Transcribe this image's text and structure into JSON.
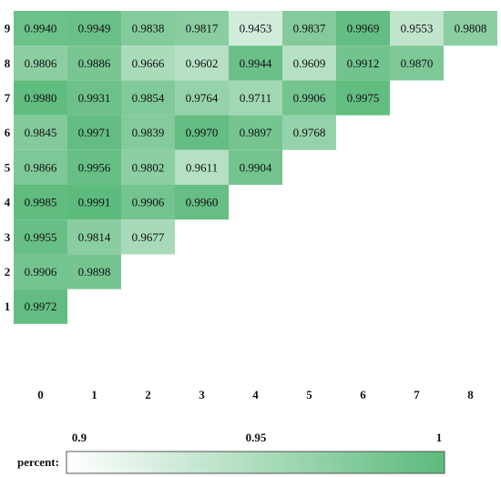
{
  "chart_data": {
    "type": "heatmap",
    "x_ticks": [
      "0",
      "1",
      "2",
      "3",
      "4",
      "5",
      "6",
      "7",
      "8"
    ],
    "y_ticks": [
      "1",
      "2",
      "3",
      "4",
      "5",
      "6",
      "7",
      "8",
      "9"
    ],
    "rows": [
      {
        "y": "9",
        "values": [
          "0.9940",
          "0.9949",
          "0.9838",
          "0.9817",
          "0.9453",
          "0.9837",
          "0.9969",
          "0.9553",
          "0.9808"
        ]
      },
      {
        "y": "8",
        "values": [
          "0.9806",
          "0.9886",
          "0.9666",
          "0.9602",
          "0.9944",
          "0.9609",
          "0.9912",
          "0.9870"
        ]
      },
      {
        "y": "7",
        "values": [
          "0.9980",
          "0.9931",
          "0.9854",
          "0.9764",
          "0.9711",
          "0.9906",
          "0.9975"
        ]
      },
      {
        "y": "6",
        "values": [
          "0.9845",
          "0.9971",
          "0.9839",
          "0.9970",
          "0.9897",
          "0.9768"
        ]
      },
      {
        "y": "5",
        "values": [
          "0.9866",
          "0.9956",
          "0.9802",
          "0.9611",
          "0.9904"
        ]
      },
      {
        "y": "4",
        "values": [
          "0.9985",
          "0.9991",
          "0.9906",
          "0.9960"
        ]
      },
      {
        "y": "3",
        "values": [
          "0.9955",
          "0.9814",
          "0.9677"
        ]
      },
      {
        "y": "2",
        "values": [
          "0.9906",
          "0.9898"
        ]
      },
      {
        "y": "1",
        "values": [
          "0.9972"
        ]
      }
    ],
    "legend": {
      "label": "percent:",
      "ticks": [
        "0.9",
        "0.95",
        "1"
      ],
      "range": [
        0.9,
        1.0
      ]
    },
    "colors": {
      "low": "#ffffff",
      "high": "#5cba7c"
    }
  }
}
